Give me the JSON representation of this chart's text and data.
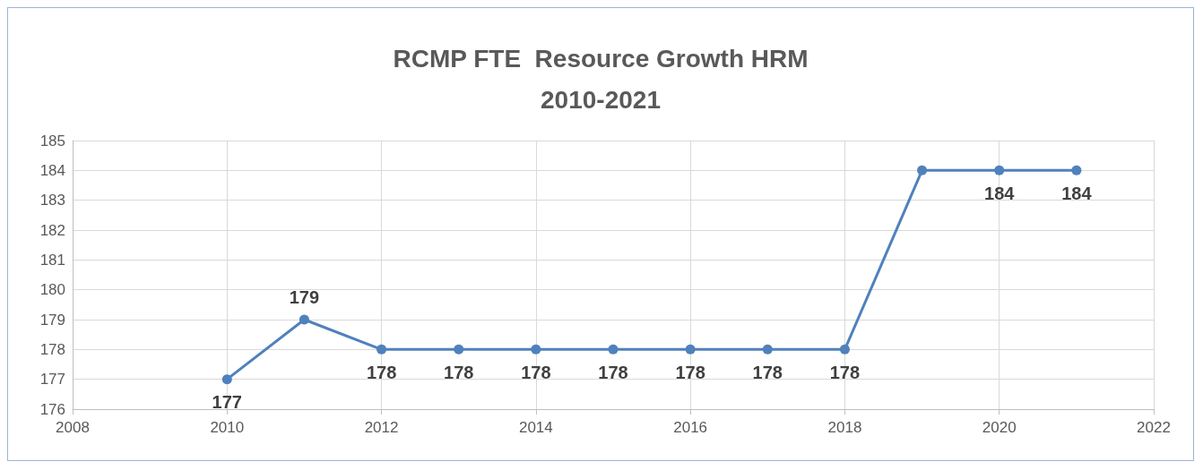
{
  "chart_data": {
    "type": "line",
    "title": "RCMP FTE  Resource Growth HRM\n2010-2021",
    "x": [
      2010,
      2011,
      2012,
      2013,
      2014,
      2015,
      2016,
      2017,
      2018,
      2019,
      2020,
      2021
    ],
    "series": [
      {
        "color": "#4f81bd",
        "values": [
          177,
          179,
          178,
          178,
          178,
          178,
          178,
          178,
          178,
          184,
          184,
          184
        ],
        "value_labels": [
          "177",
          "179",
          "178",
          "178",
          "178",
          "178",
          "178",
          "178",
          "178",
          null,
          "184",
          "184"
        ]
      }
    ],
    "xlim": [
      2008,
      2022
    ],
    "xticks": [
      2008,
      2010,
      2012,
      2014,
      2016,
      2018,
      2020,
      2022
    ],
    "ylim": [
      176,
      185
    ],
    "yticks": [
      176,
      177,
      178,
      179,
      180,
      181,
      182,
      183,
      184,
      185
    ],
    "grid": true,
    "marker": "circle",
    "line_style": "solid"
  }
}
